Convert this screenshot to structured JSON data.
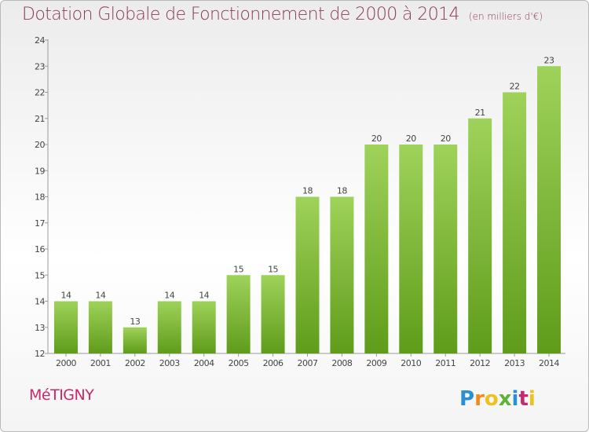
{
  "header": {
    "title": "Dotation Globale de Fonctionnement de 2000 à 2014",
    "unit": "(en milliers d'€)"
  },
  "footer": {
    "commune": "MéTIGNY",
    "logo_text": "Proxiti"
  },
  "colors": {
    "bar_light": "#9fd25a",
    "bar_dark": "#5f9c1a",
    "title": "#8a3a4f",
    "commune": "#c8286c"
  },
  "chart_data": {
    "type": "bar",
    "categories": [
      "2000",
      "2001",
      "2002",
      "2003",
      "2004",
      "2005",
      "2006",
      "2007",
      "2008",
      "2009",
      "2010",
      "2011",
      "2012",
      "2013",
      "2014"
    ],
    "values": [
      14,
      14,
      13,
      14,
      14,
      15,
      15,
      18,
      18,
      20,
      20,
      20,
      21,
      22,
      23
    ],
    "title": "Dotation Globale de Fonctionnement de 2000 à 2014",
    "ylim": [
      12,
      24
    ],
    "yticks": [
      12,
      13,
      14,
      15,
      16,
      17,
      18,
      19,
      20,
      21,
      22,
      23,
      24
    ],
    "grid": false,
    "data_labels": true
  }
}
